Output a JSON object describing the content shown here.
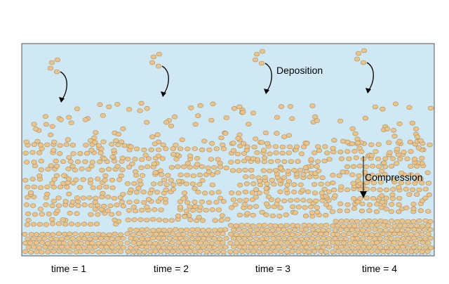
{
  "annotations": {
    "deposition": "Deposition",
    "compression": "Compression"
  },
  "time_labels": [
    "time = 1",
    "time = 2",
    "time = 3",
    "time = 4"
  ],
  "colors": {
    "water": "#cfe8f3",
    "frame": "#555555",
    "grain_fill": "#e8c590",
    "grain_stroke": "#b08a55",
    "arrow": "#000000",
    "baseline": "#888888"
  }
}
